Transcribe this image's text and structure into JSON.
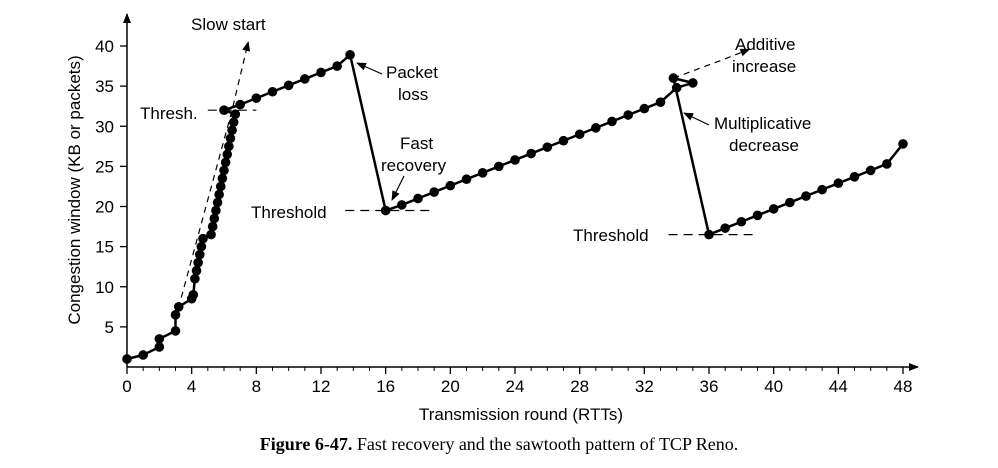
{
  "chart_data": {
    "type": "line",
    "title": "",
    "xlabel": "Transmission round (RTTs)",
    "ylabel": "Congestion window (KB or packets)",
    "xlim": [
      0,
      48
    ],
    "ylim": [
      0,
      40
    ],
    "x_ticks": [
      0,
      4,
      8,
      12,
      16,
      20,
      24,
      28,
      32,
      36,
      40,
      44,
      48
    ],
    "y_ticks": [
      5,
      10,
      15,
      20,
      25,
      30,
      35,
      40
    ],
    "grid": false,
    "series": [
      {
        "name": "",
        "points": [
          [
            0,
            1
          ],
          [
            1,
            1.5
          ],
          [
            2,
            2.5
          ],
          [
            2,
            3.5
          ],
          [
            3,
            4.5
          ],
          [
            3,
            6.5
          ],
          [
            3.2,
            7.5
          ],
          [
            4,
            8.5
          ],
          [
            4.1,
            9
          ],
          [
            4.2,
            11
          ],
          [
            4.3,
            12
          ],
          [
            4.4,
            13
          ],
          [
            4.5,
            14
          ],
          [
            4.6,
            15
          ],
          [
            4.7,
            16
          ],
          [
            5.2,
            16.5
          ],
          [
            5.3,
            17.5
          ],
          [
            5.4,
            18.5
          ],
          [
            5.5,
            19.5
          ],
          [
            5.6,
            20.5
          ],
          [
            5.7,
            21.5
          ],
          [
            5.8,
            22.5
          ],
          [
            5.9,
            23.5
          ],
          [
            6,
            24.5
          ],
          [
            6.1,
            25.5
          ],
          [
            6.2,
            26.5
          ],
          [
            6.3,
            27.5
          ],
          [
            6.4,
            28.5
          ],
          [
            6.5,
            29.5
          ],
          [
            6.6,
            30.5
          ],
          [
            6.7,
            31.5
          ],
          [
            6,
            32
          ],
          [
            7,
            32.7
          ],
          [
            8,
            33.5
          ],
          [
            9,
            34.3
          ],
          [
            10,
            35.1
          ],
          [
            11,
            35.9
          ],
          [
            12,
            36.7
          ],
          [
            13,
            37.5
          ],
          [
            13.8,
            38.9
          ],
          [
            16,
            19.5
          ],
          [
            17,
            20.2
          ],
          [
            18,
            21
          ],
          [
            19,
            21.8
          ],
          [
            20,
            22.6
          ],
          [
            21,
            23.4
          ],
          [
            22,
            24.2
          ],
          [
            23,
            25
          ],
          [
            24,
            25.8
          ],
          [
            25,
            26.6
          ],
          [
            26,
            27.4
          ],
          [
            27,
            28.2
          ],
          [
            28,
            29
          ],
          [
            29,
            29.8
          ],
          [
            30,
            30.6
          ],
          [
            31,
            31.4
          ],
          [
            32,
            32.2
          ],
          [
            33,
            33
          ],
          [
            34,
            34.8
          ],
          [
            35,
            35.4
          ],
          [
            33.8,
            36
          ],
          [
            36,
            16.5
          ],
          [
            37,
            17.3
          ],
          [
            38,
            18.1
          ],
          [
            39,
            18.9
          ],
          [
            40,
            19.7
          ],
          [
            41,
            20.5
          ],
          [
            42,
            21.3
          ],
          [
            43,
            22.1
          ],
          [
            44,
            22.9
          ],
          [
            45,
            23.7
          ],
          [
            46,
            24.5
          ],
          [
            47,
            25.3
          ],
          [
            48,
            27.8
          ]
        ]
      }
    ],
    "reference_lines": {
      "slow_start": [
        [
          3,
          6
        ],
        [
          6.5,
          32
        ],
        [
          7.5,
          40.5
        ]
      ],
      "additive_increase": [
        [
          33.8,
          36
        ],
        [
          37,
          38.4
        ],
        [
          38.5,
          39.6
        ]
      ],
      "thresh_initial": {
        "y": 32,
        "x": [
          5,
          8
        ]
      },
      "threshold_16": {
        "y": 19.5,
        "x": [
          13.5,
          19
        ]
      },
      "threshold_36": {
        "y": 16.5,
        "x": [
          33.5,
          39
        ]
      }
    },
    "annotations": {
      "slow_start": "Slow start",
      "thresh": "Thresh.",
      "packet_loss_1": "Packet",
      "packet_loss_2": "loss",
      "fast_recovery_1": "Fast",
      "fast_recovery_2": "recovery",
      "threshold_a": "Threshold",
      "threshold_b": "Threshold",
      "additive_1": "Additive",
      "additive_2": "increase",
      "multiplicative_1": "Multiplicative",
      "multiplicative_2": "decrease"
    }
  },
  "caption": {
    "figure_number": "Figure 6-47.",
    "text": "Fast recovery and the sawtooth pattern of TCP Reno."
  }
}
